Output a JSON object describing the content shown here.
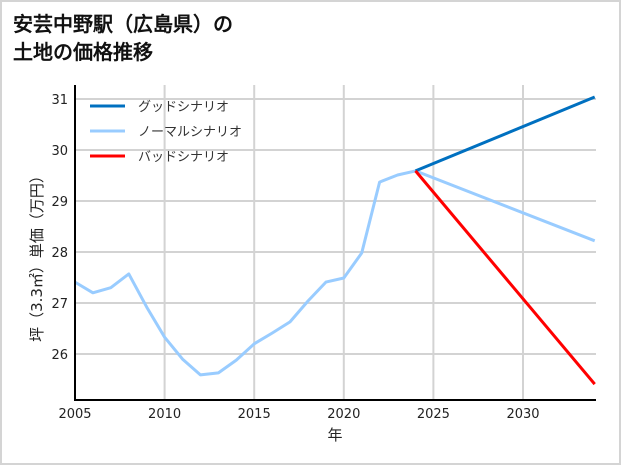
{
  "title": {
    "line1": "安芸中野駅（広島県）の",
    "line2": "土地の価格推移"
  },
  "chart_data": {
    "type": "line",
    "title": "安芸中野駅（広島県）の土地の価格推移",
    "xlabel": "年",
    "ylabel": "坪（3.3㎡）単価（万円）",
    "xlim": [
      2005,
      2034
    ],
    "ylim": [
      25.1,
      31.3
    ],
    "grid": true,
    "legend_position": "upper left",
    "x_ticks": [
      2005,
      2010,
      2015,
      2020,
      2025,
      2030
    ],
    "y_ticks": [
      26,
      27,
      28,
      29,
      30,
      31
    ],
    "series": [
      {
        "name": "グッドシナリオ",
        "color": "#0070c0",
        "x": [
          2024,
          2034
        ],
        "values": [
          29.59,
          31.04
        ]
      },
      {
        "name": "ノーマルシナリオ",
        "color": "#99ccff",
        "x": [
          2005,
          2006,
          2007,
          2008,
          2009,
          2010,
          2011,
          2012,
          2013,
          2014,
          2015,
          2016,
          2017,
          2018,
          2019,
          2020,
          2021,
          2022,
          2023,
          2024,
          2034
        ],
        "values": [
          27.41,
          27.2,
          27.3,
          27.57,
          26.92,
          26.33,
          25.9,
          25.59,
          25.63,
          25.88,
          26.2,
          26.41,
          26.63,
          27.04,
          27.41,
          27.49,
          27.98,
          29.37,
          29.51,
          29.59,
          28.22
        ]
      },
      {
        "name": "バッドシナリオ",
        "color": "#ff0000",
        "x": [
          2024,
          2034
        ],
        "values": [
          29.59,
          25.41
        ]
      }
    ]
  }
}
